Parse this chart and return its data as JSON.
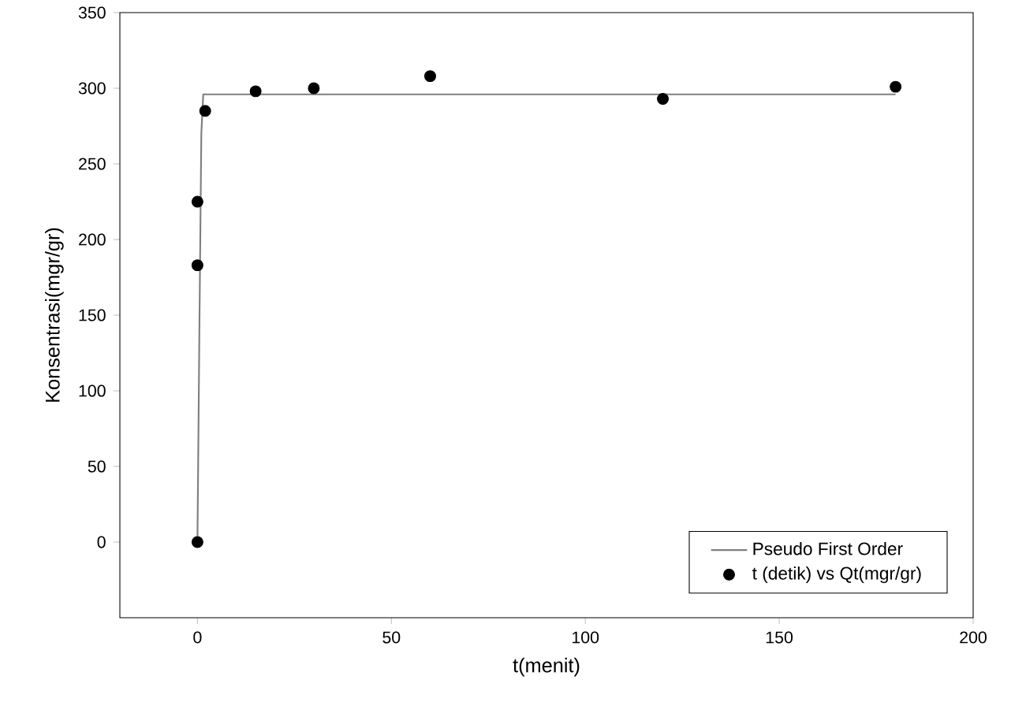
{
  "chart_data": {
    "type": "scatter",
    "xlabel": "t(menit)",
    "ylabel": "Konsentrasi(mgr/gr)",
    "xlim": [
      -20,
      200
    ],
    "ylim": [
      -50,
      350
    ],
    "xticks": [
      0,
      50,
      100,
      150,
      200
    ],
    "yticks": [
      0,
      50,
      100,
      150,
      200,
      250,
      300,
      350
    ],
    "legend": "bottom right",
    "series": [
      {
        "name": "Pseudo First Order",
        "type": "line",
        "color": "#7f7f7f",
        "marker": "none",
        "line_style": "solid",
        "x": [
          0,
          0.5,
          1,
          1.5,
          180
        ],
        "values": [
          0,
          140,
          270,
          296,
          296
        ]
      },
      {
        "name": "t (detik) vs Qt(mgr/gr)",
        "color": "#000000",
        "marker": "circle",
        "x": [
          0,
          0,
          0,
          2,
          15,
          30,
          60,
          120,
          180
        ],
        "values": [
          0,
          183,
          225,
          285,
          298,
          300,
          308,
          293,
          301
        ]
      }
    ]
  }
}
